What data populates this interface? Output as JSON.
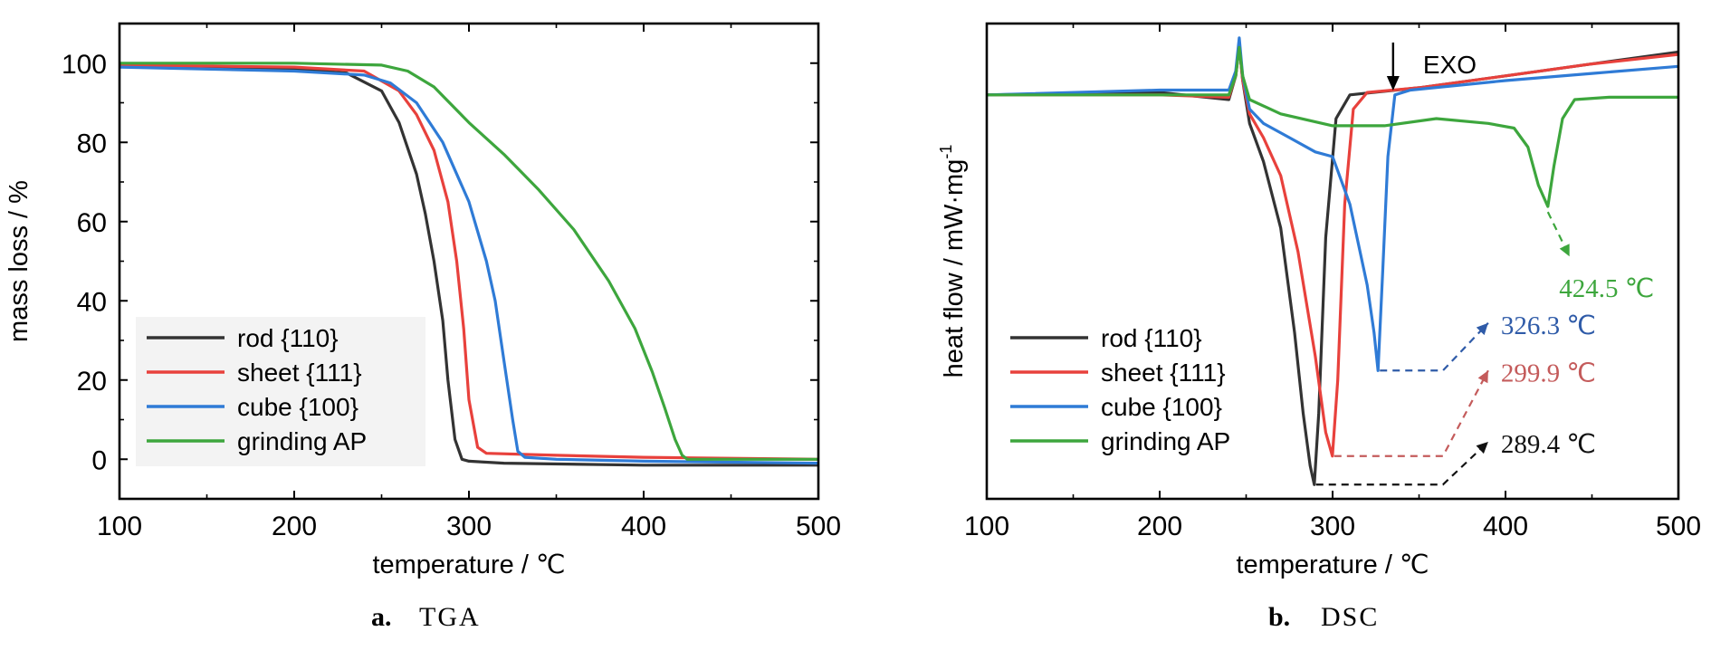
{
  "chart_data": [
    {
      "id": "tga",
      "type": "line",
      "caption_letter": "a.",
      "caption_text": "TGA",
      "xlabel": "temperature / ℃",
      "ylabel": "mass loss / %",
      "xlim": [
        100,
        500
      ],
      "ylim": [
        -10,
        110
      ],
      "xticks": [
        100,
        200,
        300,
        400,
        500
      ],
      "yticks": [
        0,
        20,
        40,
        60,
        80,
        100
      ],
      "legend": "lower-left",
      "grid": false,
      "series": [
        {
          "name": "rod {110}",
          "color": "#333333",
          "x": [
            100,
            200,
            230,
            250,
            260,
            270,
            275,
            280,
            285,
            288,
            292,
            296,
            300,
            320,
            400,
            500
          ],
          "y": [
            99.5,
            98.5,
            97.5,
            93,
            85,
            72,
            62,
            50,
            35,
            20,
            5,
            0,
            -0.5,
            -1,
            -1.5,
            -1.5
          ]
        },
        {
          "name": "sheet {111}",
          "color": "#e8413c",
          "x": [
            100,
            200,
            240,
            260,
            270,
            280,
            288,
            293,
            297,
            300,
            305,
            310,
            350,
            400,
            500
          ],
          "y": [
            99.5,
            99,
            98,
            93,
            87,
            78,
            65,
            50,
            33,
            15,
            3,
            1.5,
            1,
            0.5,
            0
          ]
        },
        {
          "name": "cube {100}",
          "color": "#2f7bd6",
          "x": [
            100,
            200,
            240,
            255,
            270,
            285,
            300,
            310,
            315,
            320,
            325,
            328,
            332,
            350,
            400,
            500
          ],
          "y": [
            99,
            98,
            97,
            95,
            90,
            80,
            65,
            50,
            40,
            25,
            10,
            2,
            0.5,
            0,
            -0.5,
            -1
          ]
        },
        {
          "name": "grinding AP",
          "color": "#3da63d",
          "x": [
            100,
            200,
            250,
            265,
            280,
            300,
            320,
            340,
            360,
            380,
            395,
            405,
            412,
            418,
            422,
            425,
            450,
            500
          ],
          "y": [
            100,
            100,
            99.5,
            98,
            94,
            85,
            77,
            68,
            58,
            45,
            33,
            22,
            13,
            5,
            1,
            0,
            0,
            0
          ]
        }
      ]
    },
    {
      "id": "dsc",
      "type": "line",
      "caption_letter": "b.",
      "caption_text": "DSC",
      "xlabel": "temperature / ℃",
      "ylabel": "heat flow / mW·mg",
      "ylabel_sup": "-1",
      "xlim": [
        100,
        500
      ],
      "ylim": [
        0,
        100
      ],
      "yticks": [],
      "xticks": [
        100,
        200,
        300,
        400,
        500
      ],
      "legend": "lower-left",
      "grid": false,
      "exo_label": "EXO",
      "series": [
        {
          "name": "rod {110}",
          "color": "#333333",
          "x": [
            100,
            200,
            240,
            244,
            246,
            248,
            252,
            260,
            270,
            278,
            283,
            287,
            289.4,
            292,
            296,
            302,
            310,
            350,
            400,
            450,
            500
          ],
          "y": [
            85,
            85.5,
            84,
            89,
            95.5,
            88,
            79,
            71,
            57,
            35,
            18,
            7,
            3,
            18,
            55,
            80,
            85,
            86.5,
            89,
            91.5,
            94
          ]
        },
        {
          "name": "sheet {111}",
          "color": "#e8413c",
          "x": [
            100,
            200,
            240,
            244,
            246,
            248,
            252,
            260,
            270,
            280,
            290,
            296,
            299.9,
            303,
            307,
            312,
            320,
            350,
            400,
            450,
            500
          ],
          "y": [
            85,
            85,
            84.5,
            89,
            95.5,
            88,
            81,
            76,
            68,
            52,
            30,
            14,
            9,
            25,
            62,
            82,
            85.5,
            86.5,
            89,
            91.5,
            93.5
          ]
        },
        {
          "name": "cube {100}",
          "color": "#2f7bd6",
          "x": [
            100,
            200,
            240,
            244,
            246,
            248,
            252,
            260,
            275,
            290,
            300,
            310,
            320,
            324,
            326.3,
            329,
            332,
            336,
            345,
            400,
            450,
            500
          ],
          "y": [
            85,
            86,
            86,
            90,
            97,
            89,
            82,
            79,
            76,
            73,
            72,
            62,
            45,
            35,
            27,
            48,
            72,
            85,
            86,
            88,
            89.5,
            91
          ]
        },
        {
          "name": "grinding AP",
          "color": "#3da63d",
          "x": [
            100,
            200,
            240,
            244,
            246,
            248,
            252,
            270,
            300,
            330,
            360,
            390,
            405,
            413,
            419,
            424.5,
            428,
            433,
            440,
            460,
            500
          ],
          "y": [
            85,
            85,
            85,
            89,
            95,
            89,
            84,
            81,
            78.5,
            78.5,
            80,
            79,
            78,
            74,
            66,
            61.5,
            70,
            80,
            84,
            84.5,
            84.5
          ]
        }
      ],
      "annotations": [
        {
          "label": "424.5 ℃",
          "color": "#3da63d",
          "x_from": 424.5,
          "y_from": 61.5,
          "x_to": 437,
          "y_to": 51
        },
        {
          "label": "326.3 ℃",
          "color": "#2f5ba8",
          "x_from": 326.3,
          "y_from": 27,
          "x_to": 390,
          "y_to": 37
        },
        {
          "label": "299.9 ℃",
          "color": "#c45b5b",
          "x_from": 299.9,
          "y_from": 9,
          "x_to": 390,
          "y_to": 27
        },
        {
          "label": "289.4 ℃",
          "color": "#111111",
          "x_from": 289.4,
          "y_from": 3,
          "x_to": 390,
          "y_to": 12
        }
      ]
    }
  ]
}
